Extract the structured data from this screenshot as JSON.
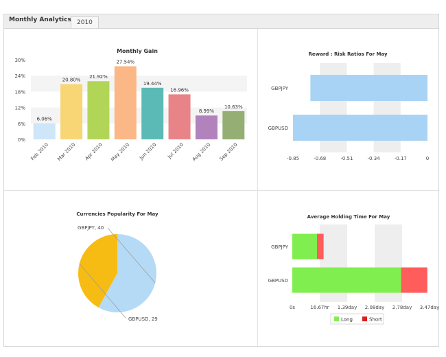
{
  "header": {
    "title": "Monthly Analytics",
    "tab_label": "2010"
  },
  "colors": {
    "pale_blue": "#a9d3f5",
    "orange": "#f7b711",
    "green": "#80ee4f",
    "red": "#ff5c5c"
  },
  "chart_data": [
    {
      "type": "bar",
      "title": "Monthly Gain",
      "categories": [
        "Feb 2010",
        "Mar 2010",
        "Apr 2010",
        "May 2010",
        "Jun 2010",
        "Jul 2010",
        "Aug 2010",
        "Sep 2010"
      ],
      "values": [
        6.06,
        20.8,
        21.92,
        27.54,
        19.44,
        16.96,
        8.99,
        10.63
      ],
      "value_labels": [
        "6.06%",
        "20.80%",
        "21.92%",
        "27.54%",
        "19.44%",
        "16.96%",
        "8.99%",
        "10.63%"
      ],
      "colors": [
        "#cfe5f8",
        "#f8d575",
        "#b1d657",
        "#fcb787",
        "#5bbab6",
        "#e88388",
        "#b282bc",
        "#95ae74"
      ],
      "ylim": [
        0,
        30
      ],
      "yticks": [
        "0%",
        "6%",
        "12%",
        "18%",
        "24%",
        "30%"
      ],
      "grid": "alternating bands"
    },
    {
      "type": "bar",
      "orientation": "horizontal",
      "title": "Reward : Risk Ratios For May",
      "categories": [
        "GBPJPY",
        "GBPUSD"
      ],
      "xlim": [
        -0.85,
        0
      ],
      "xticks": [
        "-0.85",
        "-0.68",
        "-0.51",
        "-0.34",
        "-0.17",
        "0"
      ],
      "bar_start": [
        -0.74,
        -0.85
      ],
      "bar_end": [
        0,
        0
      ],
      "grid": "alternating bands"
    },
    {
      "type": "pie",
      "title": "Currencies Popularity For May",
      "labels": [
        "GBPJPY",
        "GBPUSD"
      ],
      "values": [
        40,
        29
      ],
      "slice_labels": [
        "GBPJPY, 40",
        "GBPUSD, 29"
      ],
      "colors": [
        "#b5daf6",
        "#f7bc14"
      ]
    },
    {
      "type": "bar",
      "orientation": "horizontal",
      "stacked": true,
      "title": "Average Holding Time For May",
      "categories": [
        "GBPJPY",
        "GBPUSD"
      ],
      "xlim_hours": [
        0,
        83.33
      ],
      "xticks": [
        "0s",
        "16.67hr",
        "1.39day",
        "2.08day",
        "2.78day",
        "3.47day"
      ],
      "series": [
        {
          "name": "Long",
          "values_hours": [
            15.0,
            66.0
          ],
          "color": "#80ee4f"
        },
        {
          "name": "Short",
          "values_hours": [
            4.0,
            16.0
          ],
          "color": "#ff5c5c"
        }
      ],
      "legend": "bottom",
      "legend_swatch_colors": [
        "#80ee4f",
        "#e01b1b"
      ],
      "grid": "alternating bands"
    }
  ]
}
